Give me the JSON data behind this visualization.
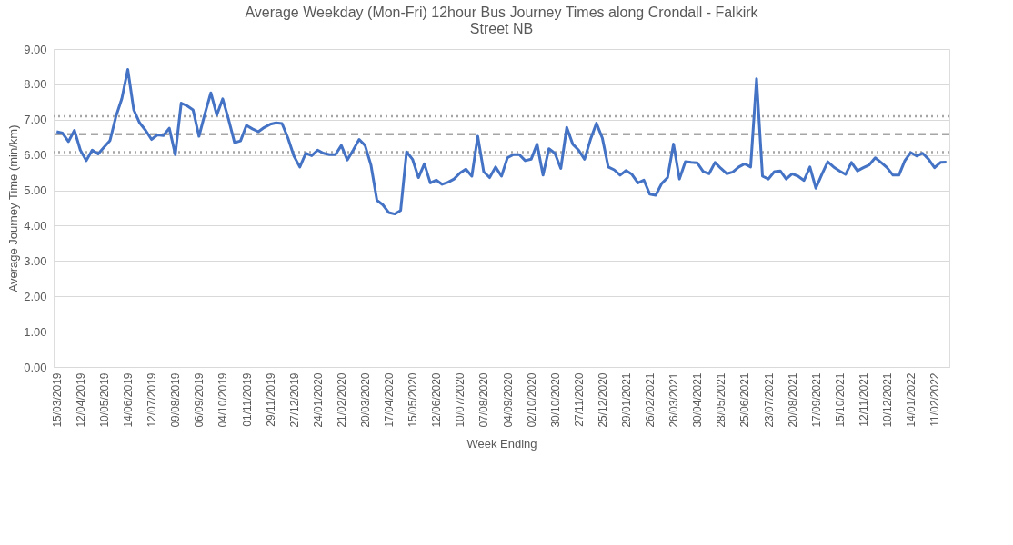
{
  "chart_data": {
    "type": "line",
    "title": "Average Weekday (Mon-Fri) 12hour Bus Journey Times along Crondall - Falkirk Street NB",
    "xlabel": "Week Ending",
    "ylabel": "Average Journey Time (min/km)",
    "categories": [
      "15/03/2019",
      null,
      null,
      null,
      "12/04/2019",
      null,
      null,
      null,
      "10/05/2019",
      null,
      null,
      null,
      "14/06/2019",
      null,
      null,
      null,
      "12/07/2019",
      null,
      null,
      null,
      "09/08/2019",
      null,
      null,
      null,
      "06/09/2019",
      null,
      null,
      null,
      "04/10/2019",
      null,
      null,
      null,
      "01/11/2019",
      null,
      null,
      null,
      "29/11/2019",
      null,
      null,
      null,
      "27/12/2019",
      null,
      null,
      null,
      "24/01/2020",
      null,
      null,
      null,
      "21/02/2020",
      null,
      null,
      null,
      "20/03/2020",
      null,
      null,
      null,
      "17/04/2020",
      null,
      null,
      null,
      "15/05/2020",
      null,
      null,
      null,
      "12/06/2020",
      null,
      null,
      null,
      "10/07/2020",
      null,
      null,
      null,
      "07/08/2020",
      null,
      null,
      null,
      "04/09/2020",
      null,
      null,
      null,
      "02/10/2020",
      null,
      null,
      null,
      "30/10/2020",
      null,
      null,
      null,
      "27/11/2020",
      null,
      null,
      null,
      "25/12/2020",
      null,
      null,
      null,
      "29/01/2021",
      null,
      null,
      null,
      "26/02/2021",
      null,
      null,
      null,
      "26/03/2021",
      null,
      null,
      null,
      "30/04/2021",
      null,
      null,
      null,
      "28/05/2021",
      null,
      null,
      null,
      "25/06/2021",
      null,
      null,
      null,
      "23/07/2021",
      null,
      null,
      null,
      "20/08/2021",
      null,
      null,
      null,
      "17/09/2021",
      null,
      null,
      null,
      "15/10/2021",
      null,
      null,
      null,
      "12/11/2021",
      null,
      null,
      null,
      "10/12/2021",
      null,
      null,
      null,
      "14/01/2022",
      null,
      null,
      null,
      "11/02/2022",
      null,
      null
    ],
    "series": [
      {
        "color": "#4472c4",
        "values": [
          6.66,
          6.62,
          6.38,
          6.7,
          6.14,
          5.84,
          6.14,
          6.03,
          6.22,
          6.41,
          7.09,
          7.6,
          8.42,
          7.28,
          6.91,
          6.7,
          6.44,
          6.57,
          6.55,
          6.76,
          6.01,
          7.47,
          7.39,
          7.28,
          6.53,
          7.17,
          7.76,
          7.13,
          7.59,
          7.0,
          6.35,
          6.4,
          6.84,
          6.74,
          6.66,
          6.78,
          6.87,
          6.91,
          6.89,
          6.48,
          5.97,
          5.66,
          6.05,
          5.98,
          6.14,
          6.05,
          6.01,
          6.01,
          6.27,
          5.86,
          6.14,
          6.44,
          6.27,
          5.71,
          4.72,
          4.59,
          4.37,
          4.33,
          4.43,
          6.09,
          5.88,
          5.36,
          5.75,
          5.21,
          5.29,
          5.17,
          5.23,
          5.32,
          5.49,
          5.6,
          5.4,
          6.53,
          5.53,
          5.36,
          5.66,
          5.4,
          5.92,
          6.01,
          6.01,
          5.84,
          5.88,
          6.31,
          5.43,
          6.18,
          6.05,
          5.62,
          6.78,
          6.31,
          6.14,
          5.88,
          6.44,
          6.9,
          6.48,
          5.66,
          5.58,
          5.43,
          5.56,
          5.45,
          5.21,
          5.29,
          4.89,
          4.86,
          5.19,
          5.36,
          6.31,
          5.32,
          5.81,
          5.79,
          5.78,
          5.53,
          5.47,
          5.79,
          5.62,
          5.47,
          5.52,
          5.66,
          5.75,
          5.66,
          8.16,
          5.4,
          5.32,
          5.53,
          5.55,
          5.32,
          5.47,
          5.4,
          5.28,
          5.66,
          5.06,
          5.45,
          5.81,
          5.66,
          5.55,
          5.45,
          5.79,
          5.55,
          5.64,
          5.72,
          5.92,
          5.79,
          5.64,
          5.43,
          5.43,
          5.84,
          6.07,
          5.97,
          6.05,
          5.88,
          5.64,
          5.79,
          5.8
        ]
      }
    ],
    "ylim": [
      0,
      9
    ],
    "yticks": [
      {
        "value": 0,
        "label": "0.00"
      },
      {
        "value": 1,
        "label": "1.00"
      },
      {
        "value": 2,
        "label": "2.00"
      },
      {
        "value": 3,
        "label": "3.00"
      },
      {
        "value": 4,
        "label": "4.00"
      },
      {
        "value": 5,
        "label": "5.00"
      },
      {
        "value": 6,
        "label": "6.00"
      },
      {
        "value": 7,
        "label": "7.00"
      },
      {
        "value": 8,
        "label": "8.00"
      },
      {
        "value": 9,
        "label": "9.00"
      }
    ],
    "ref_lines": [
      {
        "axis": "y",
        "value": 7.1,
        "color": "#a6a6a6",
        "line_style": "dotted"
      },
      {
        "axis": "y",
        "value": 6.59,
        "color": "#a6a6a6",
        "line_style": "dashed"
      },
      {
        "axis": "y",
        "value": 6.08,
        "color": "#a6a6a6",
        "line_style": "dotted"
      }
    ],
    "grid": "y",
    "marker": "none",
    "line_style": "solid"
  }
}
